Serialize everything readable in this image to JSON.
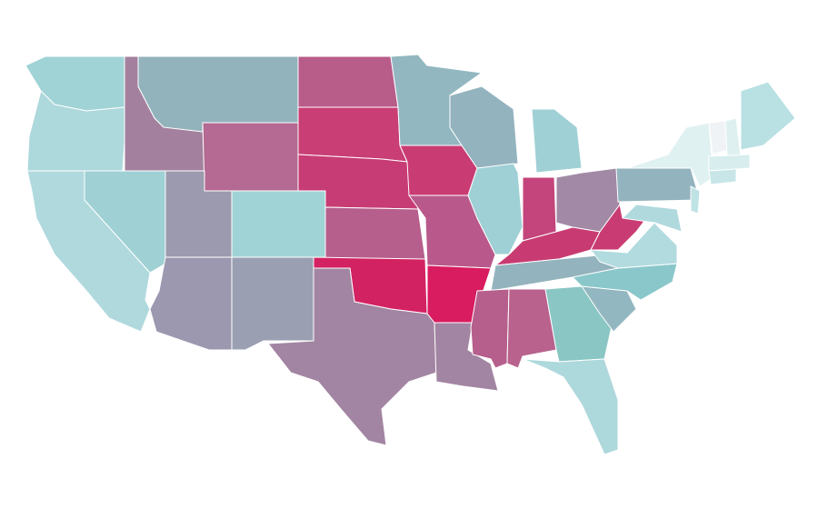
{
  "map": {
    "region_colors": [
      "#a0d3d6",
      "#add8dc",
      "#b0d9de",
      "#9fd0d4",
      "#a3819e",
      "#93b3bc",
      "#b46a92",
      "#9c9aae",
      "#a0d3d6",
      "#9c98b0",
      "#9aa0b2",
      "#b85c8a",
      "#c83e75",
      "#c73c74",
      "#b65f8c",
      "#d32262",
      "#a285a2",
      "#93b7c0",
      "#c93c73",
      "#b9598b",
      "#d91b5f",
      "#a285a2",
      "#93b3be",
      "#9fd0d5",
      "#9fd0d5",
      "#c4457b",
      "#a28aa6",
      "#c83b72",
      "#93b3be",
      "#b65f8c",
      "#b8628d",
      "#8ac7c4",
      "#add8dc",
      "#93b7c0",
      "#8ac7ca",
      "#b2dbdf",
      "#c93c73",
      "#93b3be",
      "#e0f1f2",
      "#b0d9de",
      "#bfe2e4",
      "#f0f3f6",
      "#dff0f1",
      "#b9e0e3",
      "#d7edee",
      "#c8e6e8"
    ]
  }
}
